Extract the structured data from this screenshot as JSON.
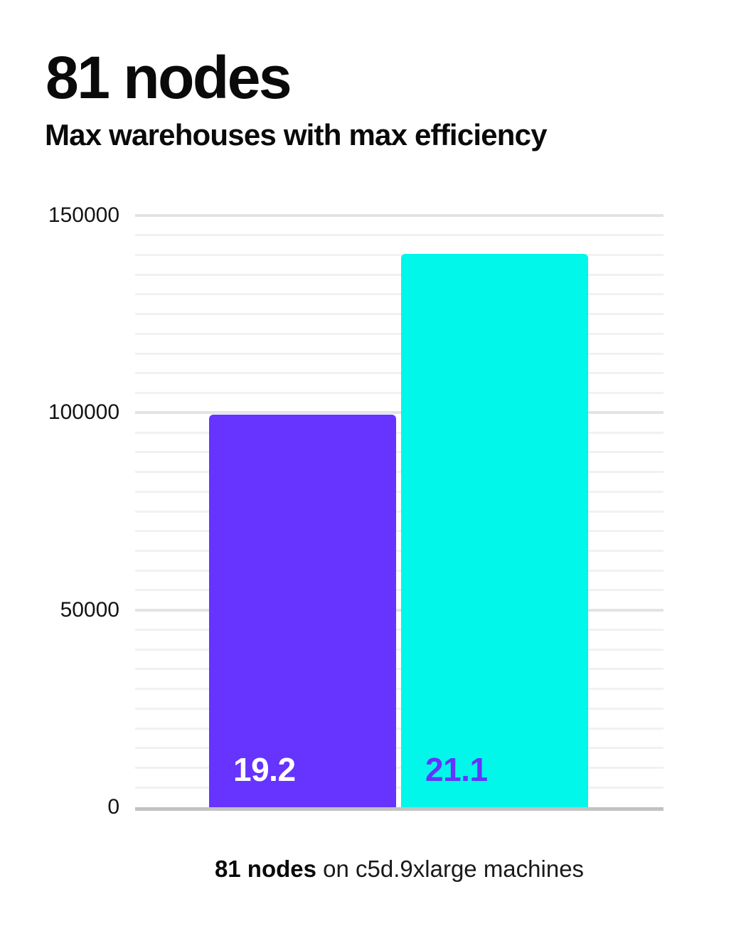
{
  "header": {
    "title": "81 nodes",
    "subtitle": "Max warehouses with max efficiency"
  },
  "caption": {
    "bold": "81 nodes",
    "rest": " on c5d.9xlarge machines"
  },
  "colors": {
    "card_background": "#ffffff",
    "text": "#0a0a0a",
    "tick_text": "#141414",
    "bar_purple": "#6633ff",
    "bar_cyan": "#00f7e9",
    "bar1_label_text": "#ffffff",
    "bar2_label_text": "#6633ff",
    "axis_line": "#c2c2c2",
    "gridline_minor": "#f1f1f1",
    "gridline_major": "#e3e3e3"
  },
  "chart_data": {
    "type": "bar",
    "title": "81 nodes",
    "subtitle": "Max warehouses with max efficiency",
    "categories": [
      "",
      ""
    ],
    "values": [
      99500,
      140200
    ],
    "bar_value_labels": [
      "19.2",
      "21.1"
    ],
    "bar_colors": [
      "#6633ff",
      "#00f7e9"
    ],
    "bar_label_colors": [
      "#ffffff",
      "#6633ff"
    ],
    "ylim": [
      0,
      150000
    ],
    "yticks": [
      0,
      50000,
      100000,
      150000
    ],
    "ytick_labels": [
      "0",
      "50000",
      "100000",
      "150000"
    ],
    "minor_grid_step": 5000,
    "grid": true,
    "legend": false,
    "xlabel": "",
    "ylabel": "",
    "caption": "81 nodes on c5d.9xlarge machines"
  }
}
